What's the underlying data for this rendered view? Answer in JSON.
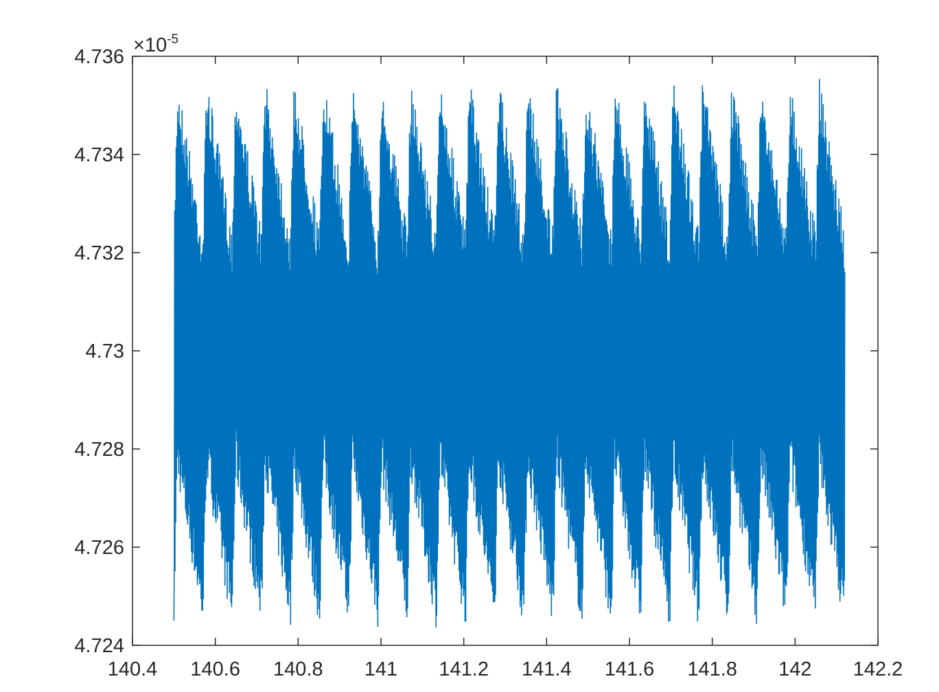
{
  "chart_data": {
    "type": "line",
    "title": "",
    "xlabel": "",
    "ylabel": "",
    "xlim": [
      140.4,
      142.2
    ],
    "ylim": [
      4.724,
      4.736
    ],
    "x_ticks": [
      140.4,
      140.6,
      140.8,
      141,
      141.2,
      141.4,
      141.6,
      141.8,
      142,
      142.2
    ],
    "x_tick_labels": [
      "140.4",
      "140.6",
      "140.8",
      "141",
      "141.2",
      "141.4",
      "141.6",
      "141.8",
      "142",
      "142.2"
    ],
    "y_ticks": [
      4.724,
      4.726,
      4.728,
      4.73,
      4.732,
      4.734,
      4.736
    ],
    "y_tick_labels": [
      "4.724",
      "4.726",
      "4.728",
      "4.73",
      "4.732",
      "4.734",
      "4.736"
    ],
    "y_multiplier": {
      "prefix": "×10",
      "exponent": "-5"
    },
    "grid": false,
    "line_color": "#0072BD",
    "series": [
      {
        "x_start": 140.5,
        "x_end": 142.12,
        "cycles": 23,
        "y_min": 4.7243,
        "y_max": 4.7356,
        "y_start": 4.7245,
        "y_end": 4.7316
      }
    ]
  }
}
